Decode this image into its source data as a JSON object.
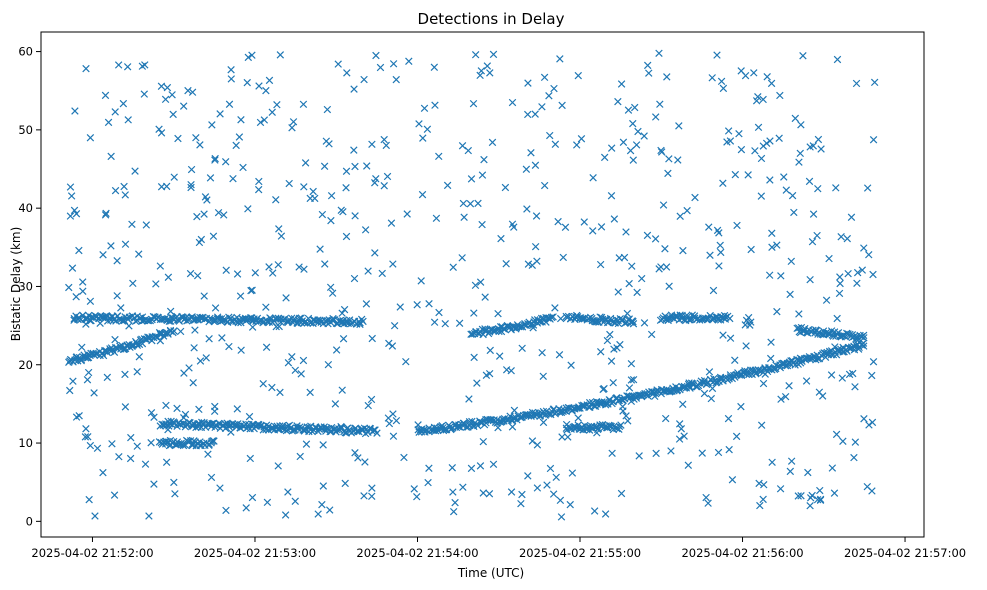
{
  "chart_data": {
    "type": "scatter",
    "title": "Detections in Delay",
    "xlabel": "Time (UTC)",
    "ylabel": "Bistatic Delay (km)",
    "marker": "x",
    "color": "#1f77b4",
    "grid": false,
    "xlim": [
      "2025-04-02 21:51:41",
      "2025-04-02 21:57:07"
    ],
    "ylim": [
      -2,
      62.5
    ],
    "x_ticks": [
      "2025-04-02 21:52:00",
      "2025-04-02 21:53:00",
      "2025-04-02 21:54:00",
      "2025-04-02 21:55:00",
      "2025-04-02 21:56:00",
      "2025-04-02 21:57:00"
    ],
    "y_ticks": [
      0,
      10,
      20,
      30,
      40,
      50,
      60
    ],
    "data_range": {
      "x": [
        "2025-04-02 21:51:51",
        "2025-04-02 21:56:49"
      ],
      "y": [
        0.5,
        59.8
      ]
    },
    "tracks": [
      {
        "x": [
          "2025-04-02 21:51:51",
          "2025-04-02 21:52:30"
        ],
        "y": [
          20.5,
          24.5
        ]
      },
      {
        "x": [
          "2025-04-02 21:51:53",
          "2025-04-02 21:53:40"
        ],
        "y": [
          26.0,
          25.5
        ]
      },
      {
        "x": [
          "2025-04-02 21:52:25",
          "2025-04-02 21:53:45"
        ],
        "y": [
          12.5,
          11.5
        ]
      },
      {
        "x": [
          "2025-04-02 21:52:25",
          "2025-04-02 21:52:45"
        ],
        "y": [
          10.0,
          10.0
        ]
      },
      {
        "x": [
          "2025-04-02 21:54:00",
          "2025-04-02 21:56:45"
        ],
        "y": [
          11.5,
          22.5
        ]
      },
      {
        "x": [
          "2025-04-02 21:54:20",
          "2025-04-02 21:54:50"
        ],
        "y": [
          24.0,
          26.0
        ]
      },
      {
        "x": [
          "2025-04-02 21:54:55",
          "2025-04-02 21:55:20"
        ],
        "y": [
          26.0,
          25.5
        ]
      },
      {
        "x": [
          "2025-04-02 21:55:30",
          "2025-04-02 21:55:55"
        ],
        "y": [
          26.0,
          26.0
        ]
      },
      {
        "x": [
          "2025-04-02 21:54:55",
          "2025-04-02 21:55:15"
        ],
        "y": [
          12.0,
          12.0
        ]
      },
      {
        "x": [
          "2025-04-02 21:56:20",
          "2025-04-02 21:56:45"
        ],
        "y": [
          24.5,
          23.5
        ]
      }
    ],
    "scatter_points": 700
  }
}
